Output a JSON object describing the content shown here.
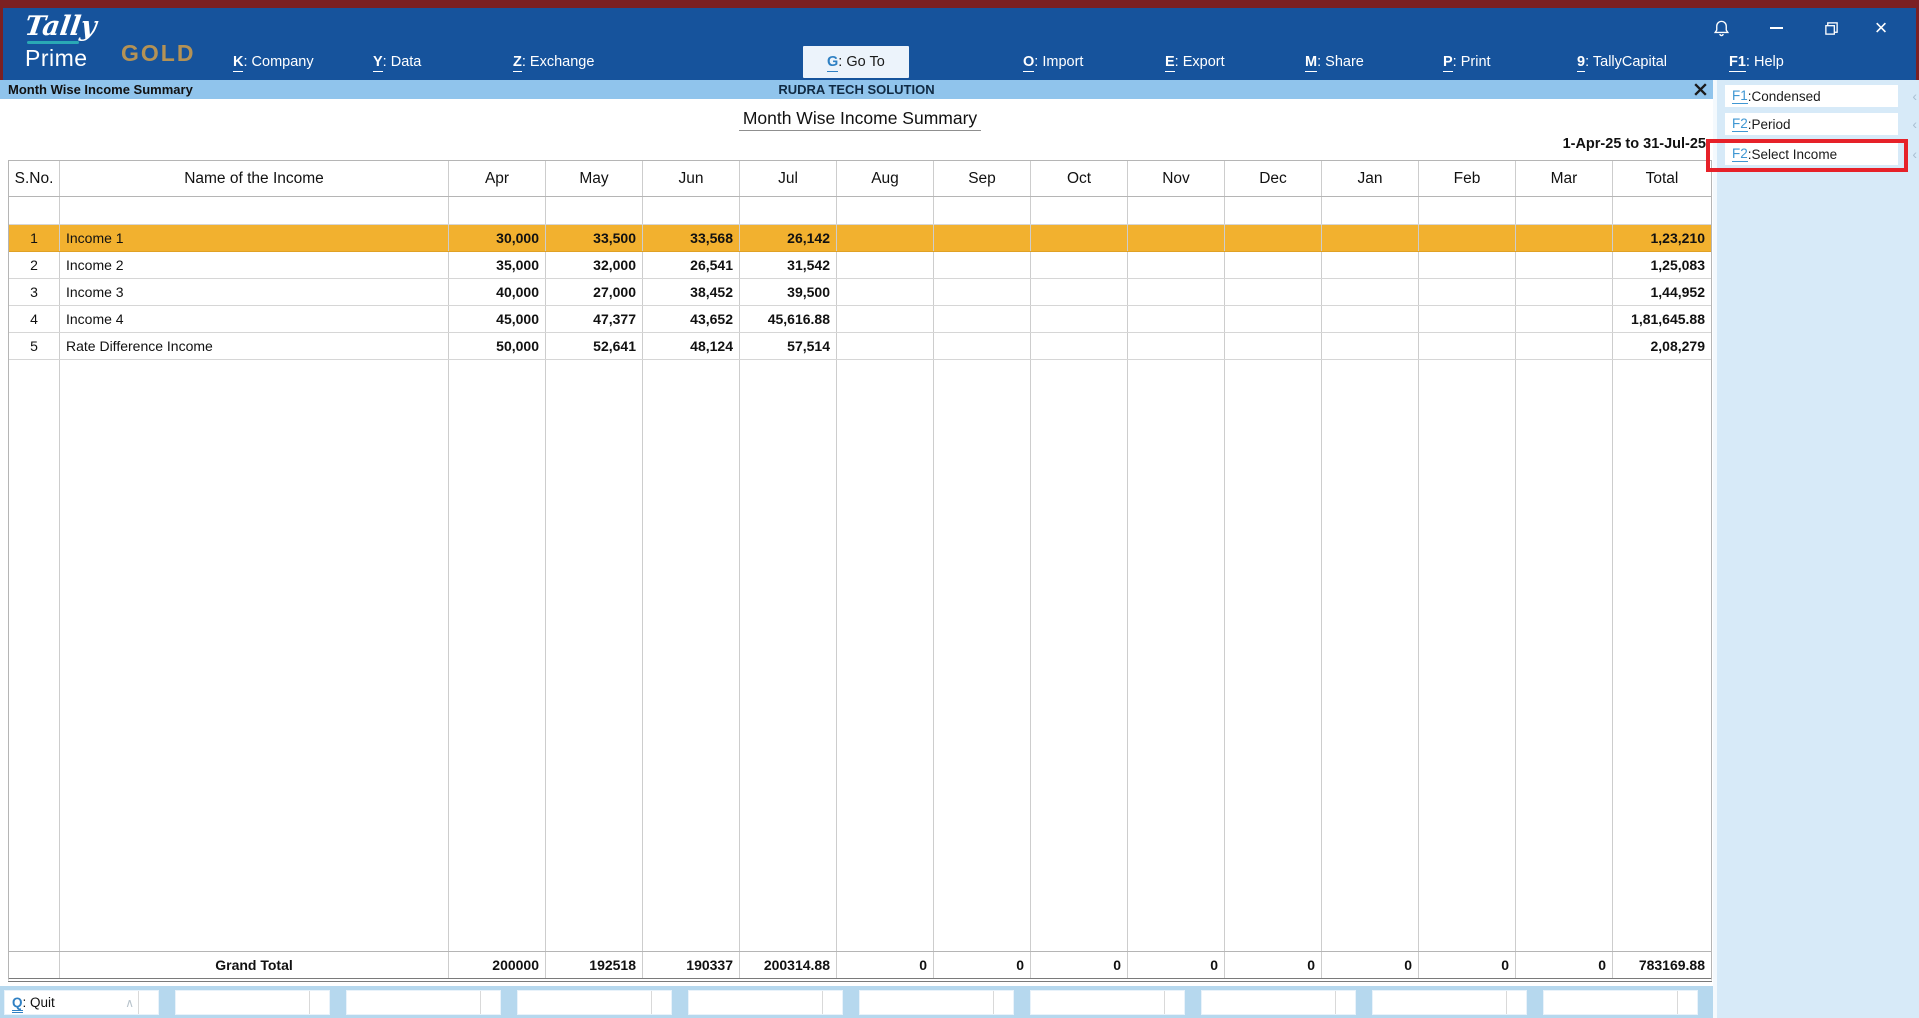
{
  "topbar": {
    "logo": {
      "script": "Tally",
      "product": "Prime",
      "edition": "GOLD"
    },
    "menu": [
      {
        "key": "K",
        "label": "Company",
        "selected": false
      },
      {
        "key": "Y",
        "label": "Data",
        "selected": false
      },
      {
        "key": "Z",
        "label": "Exchange",
        "selected": false
      },
      {
        "key": "G",
        "label": "Go To",
        "selected": true
      },
      {
        "key": "O",
        "label": "Import",
        "selected": false
      },
      {
        "key": "E",
        "label": "Export",
        "selected": false
      },
      {
        "key": "M",
        "label": "Share",
        "selected": false
      },
      {
        "key": "P",
        "label": "Print",
        "selected": false
      },
      {
        "key": "9",
        "label": "TallyCapital",
        "selected": false
      },
      {
        "key": "F1",
        "label": "Help",
        "selected": false
      }
    ],
    "window_controls": [
      "notification-bell",
      "minimize",
      "restore",
      "close"
    ]
  },
  "titlebar": {
    "view_name": "Month Wise Income Summary",
    "company_name": "RUDRA TECH SOLUTION"
  },
  "report": {
    "title": "Month Wise Income Summary",
    "period": "1-Apr-25 to 31-Jul-25"
  },
  "table": {
    "headers": {
      "sno": "S.No.",
      "name": "Name of the Income",
      "total": "Total"
    },
    "months": [
      "Apr",
      "May",
      "Jun",
      "Jul",
      "Aug",
      "Sep",
      "Oct",
      "Nov",
      "Dec",
      "Jan",
      "Feb",
      "Mar"
    ],
    "rows": [
      {
        "sno": "1",
        "name": "Income 1",
        "values": [
          "30,000",
          "33,500",
          "33,568",
          "26,142",
          "",
          "",
          "",
          "",
          "",
          "",
          "",
          ""
        ],
        "total": "1,23,210",
        "highlighted": true
      },
      {
        "sno": "2",
        "name": "Income 2",
        "values": [
          "35,000",
          "32,000",
          "26,541",
          "31,542",
          "",
          "",
          "",
          "",
          "",
          "",
          "",
          ""
        ],
        "total": "1,25,083",
        "highlighted": false
      },
      {
        "sno": "3",
        "name": "Income 3",
        "values": [
          "40,000",
          "27,000",
          "38,452",
          "39,500",
          "",
          "",
          "",
          "",
          "",
          "",
          "",
          ""
        ],
        "total": "1,44,952",
        "highlighted": false
      },
      {
        "sno": "4",
        "name": "Income 4",
        "values": [
          "45,000",
          "47,377",
          "43,652",
          "45,616.88",
          "",
          "",
          "",
          "",
          "",
          "",
          "",
          ""
        ],
        "total": "1,81,645.88",
        "highlighted": false
      },
      {
        "sno": "5",
        "name": "Rate Difference Income",
        "values": [
          "50,000",
          "52,641",
          "48,124",
          "57,514",
          "",
          "",
          "",
          "",
          "",
          "",
          "",
          ""
        ],
        "total": "2,08,279",
        "highlighted": false
      }
    ],
    "grand_total": {
      "label": "Grand Total",
      "values": [
        "200000",
        "192518",
        "190337",
        "200314.88",
        "0",
        "0",
        "0",
        "0",
        "0",
        "0",
        "0",
        "0"
      ],
      "total": "783169.88"
    }
  },
  "side_panel": {
    "buttons": [
      {
        "key": "F1",
        "label": "Condensed",
        "annotated": false
      },
      {
        "key": "F2",
        "label": "Period",
        "annotated": false
      },
      {
        "key": "F2",
        "label": "Select Income",
        "annotated": true
      }
    ],
    "chevron_icon": "‹"
  },
  "bottom_bar": {
    "quit_key": "Q",
    "quit_label": "Quit",
    "caret_icon": "∧",
    "empty_slot_count": 9
  },
  "colors": {
    "topbar_blue": "#16539c",
    "maroon_frame": "#7b2022",
    "title_strip_blue": "#90c4ec",
    "panel_blue": "#d7eaf8",
    "bottom_bar_blue": "#b6d8ee",
    "row_highlight_orange": "#f2b12f",
    "gold_edition": "#b49255",
    "shortcut_blue": "#2f80c3",
    "annotation_red": "#e62129"
  }
}
